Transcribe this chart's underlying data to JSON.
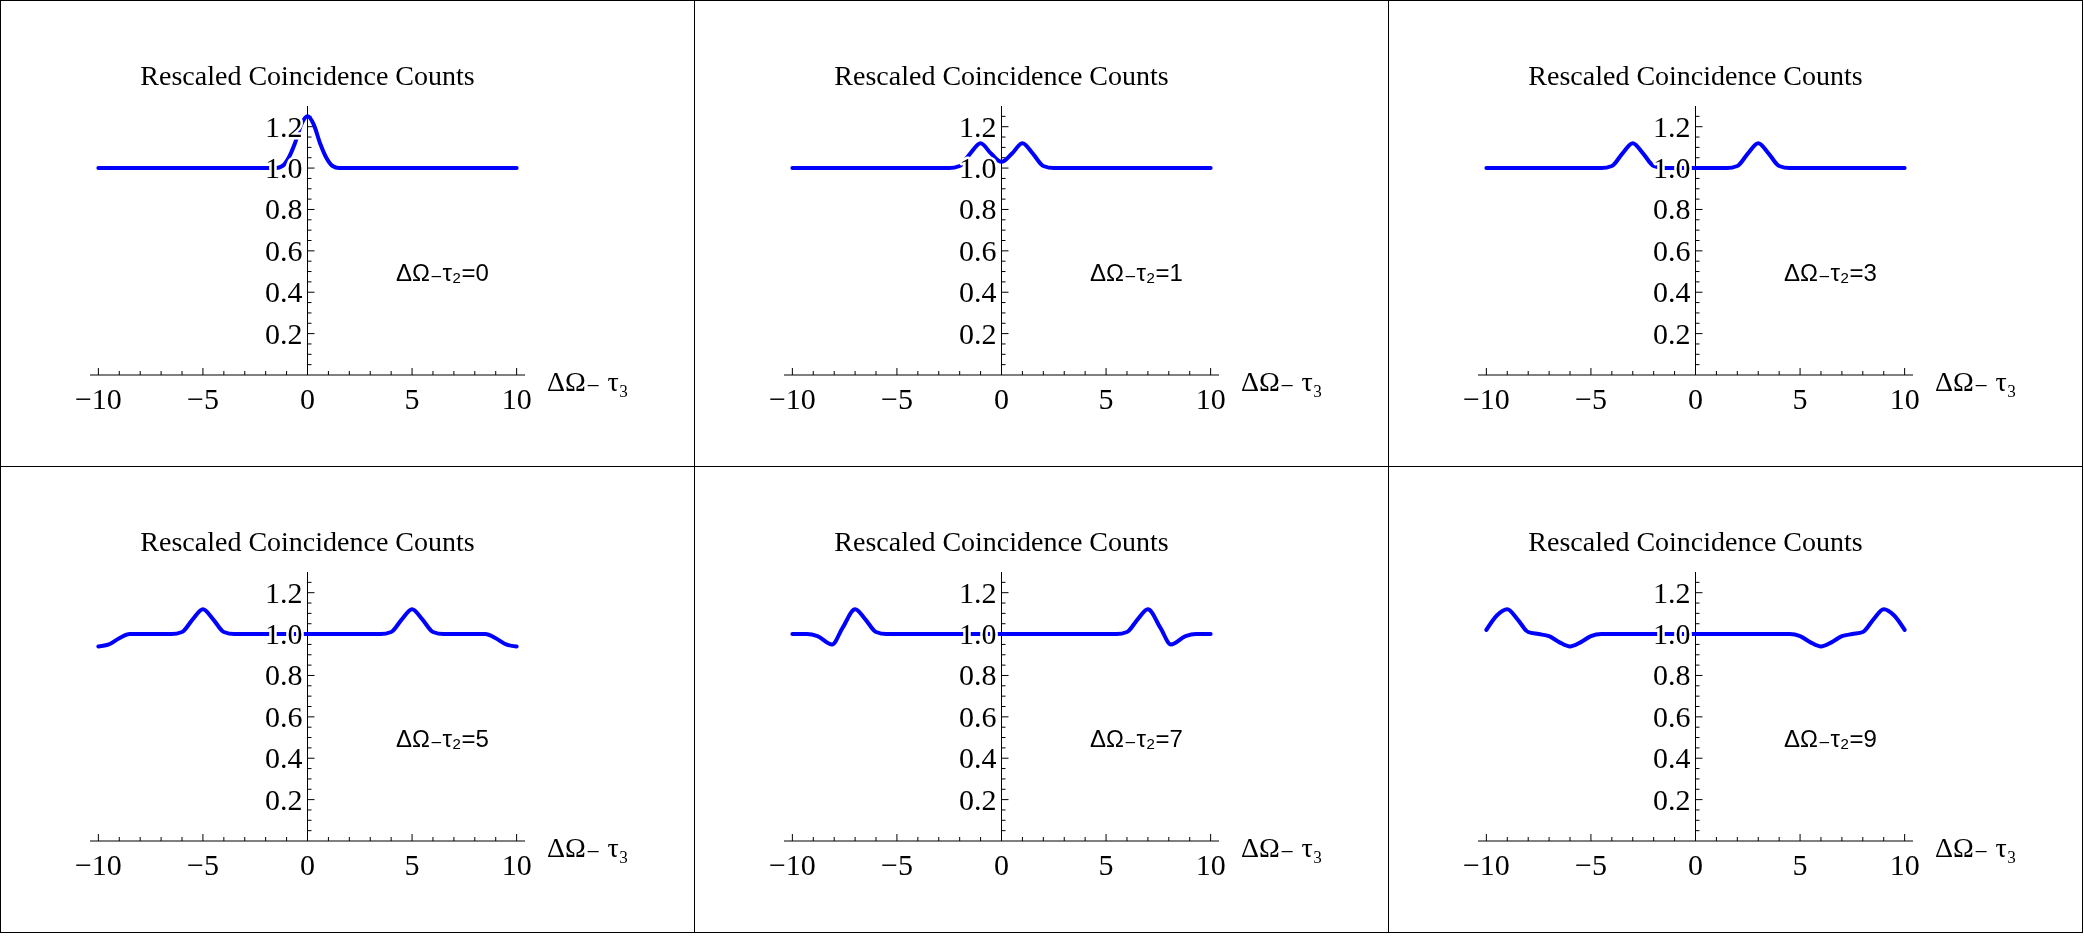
{
  "chart_data": [
    {
      "type": "line",
      "title": "Rescaled Coincidence Counts",
      "xlabel": "ΔΩ₋ τ₃",
      "annotations": [
        "ΔΩ₋τ₂=0"
      ],
      "xlim": [
        -10.4,
        10.4
      ],
      "ylim": [
        0,
        1.3
      ],
      "xticks": [
        {
          "value": -10,
          "label": "−10"
        },
        {
          "value": -9,
          "label": null
        },
        {
          "value": -8,
          "label": null
        },
        {
          "value": -7,
          "label": null
        },
        {
          "value": -6,
          "label": null
        },
        {
          "value": -5,
          "label": "−5"
        },
        {
          "value": -4,
          "label": null
        },
        {
          "value": -3,
          "label": null
        },
        {
          "value": -2,
          "label": null
        },
        {
          "value": -1,
          "label": null
        },
        {
          "value": 0,
          "label": "0"
        },
        {
          "value": 1,
          "label": null
        },
        {
          "value": 2,
          "label": null
        },
        {
          "value": 3,
          "label": null
        },
        {
          "value": 4,
          "label": null
        },
        {
          "value": 5,
          "label": "5"
        },
        {
          "value": 6,
          "label": null
        },
        {
          "value": 7,
          "label": null
        },
        {
          "value": 8,
          "label": null
        },
        {
          "value": 9,
          "label": null
        },
        {
          "value": 10,
          "label": "10"
        }
      ],
      "yticks": [
        {
          "value": 0.05,
          "label": null
        },
        {
          "value": 0.1,
          "label": null
        },
        {
          "value": 0.15,
          "label": null
        },
        {
          "value": 0.2,
          "label": "0.2"
        },
        {
          "value": 0.25,
          "label": null
        },
        {
          "value": 0.3,
          "label": null
        },
        {
          "value": 0.35,
          "label": null
        },
        {
          "value": 0.4,
          "label": "0.4"
        },
        {
          "value": 0.45,
          "label": null
        },
        {
          "value": 0.5,
          "label": null
        },
        {
          "value": 0.55,
          "label": null
        },
        {
          "value": 0.6,
          "label": "0.6"
        },
        {
          "value": 0.65,
          "label": null
        },
        {
          "value": 0.7,
          "label": null
        },
        {
          "value": 0.75,
          "label": null
        },
        {
          "value": 0.8,
          "label": "0.8"
        },
        {
          "value": 0.85,
          "label": null
        },
        {
          "value": 0.9,
          "label": null
        },
        {
          "value": 0.95,
          "label": null
        },
        {
          "value": 1,
          "label": "1.0"
        },
        {
          "value": 1.05,
          "label": null
        },
        {
          "value": 1.1,
          "label": null
        },
        {
          "value": 1.15,
          "label": null
        },
        {
          "value": 1.2,
          "label": "1.2"
        },
        {
          "value": 1.25,
          "label": null
        }
      ],
      "series": [
        {
          "color": "#0000ff",
          "x": [
            -10,
            -1.5,
            -1.2,
            -0.9,
            -0.6,
            -0.3,
            0,
            0.3,
            0.6,
            0.9,
            1.2,
            1.5,
            10
          ],
          "values": [
            1,
            1,
            1.01,
            1.05,
            1.12,
            1.21,
            1.25,
            1.21,
            1.12,
            1.05,
            1.01,
            1,
            1
          ]
        }
      ]
    },
    {
      "type": "line",
      "title": "Rescaled Coincidence Counts",
      "xlabel": "ΔΩ₋ τ₃",
      "annotations": [
        "ΔΩ₋τ₂=1"
      ],
      "xlim": [
        -10.4,
        10.4
      ],
      "ylim": [
        0,
        1.3
      ],
      "xticks": [
        {
          "value": -10,
          "label": "−10"
        },
        {
          "value": -9,
          "label": null
        },
        {
          "value": -8,
          "label": null
        },
        {
          "value": -7,
          "label": null
        },
        {
          "value": -6,
          "label": null
        },
        {
          "value": -5,
          "label": "−5"
        },
        {
          "value": -4,
          "label": null
        },
        {
          "value": -3,
          "label": null
        },
        {
          "value": -2,
          "label": null
        },
        {
          "value": -1,
          "label": null
        },
        {
          "value": 0,
          "label": "0"
        },
        {
          "value": 1,
          "label": null
        },
        {
          "value": 2,
          "label": null
        },
        {
          "value": 3,
          "label": null
        },
        {
          "value": 4,
          "label": null
        },
        {
          "value": 5,
          "label": "5"
        },
        {
          "value": 6,
          "label": null
        },
        {
          "value": 7,
          "label": null
        },
        {
          "value": 8,
          "label": null
        },
        {
          "value": 9,
          "label": null
        },
        {
          "value": 10,
          "label": "10"
        }
      ],
      "yticks": [
        {
          "value": 0.05,
          "label": null
        },
        {
          "value": 0.1,
          "label": null
        },
        {
          "value": 0.15,
          "label": null
        },
        {
          "value": 0.2,
          "label": "0.2"
        },
        {
          "value": 0.25,
          "label": null
        },
        {
          "value": 0.3,
          "label": null
        },
        {
          "value": 0.35,
          "label": null
        },
        {
          "value": 0.4,
          "label": "0.4"
        },
        {
          "value": 0.45,
          "label": null
        },
        {
          "value": 0.5,
          "label": null
        },
        {
          "value": 0.55,
          "label": null
        },
        {
          "value": 0.6,
          "label": "0.6"
        },
        {
          "value": 0.65,
          "label": null
        },
        {
          "value": 0.7,
          "label": null
        },
        {
          "value": 0.75,
          "label": null
        },
        {
          "value": 0.8,
          "label": "0.8"
        },
        {
          "value": 0.85,
          "label": null
        },
        {
          "value": 0.9,
          "label": null
        },
        {
          "value": 0.95,
          "label": null
        },
        {
          "value": 1,
          "label": "1.0"
        },
        {
          "value": 1.05,
          "label": null
        },
        {
          "value": 1.1,
          "label": null
        },
        {
          "value": 1.15,
          "label": null
        },
        {
          "value": 1.2,
          "label": "1.2"
        },
        {
          "value": 1.25,
          "label": null
        }
      ],
      "series": [
        {
          "color": "#0000ff",
          "x": [
            -10,
            -2.5,
            -2,
            -1.5,
            -1,
            -0.5,
            0,
            0.5,
            1,
            1.5,
            2,
            2.5,
            10
          ],
          "values": [
            1,
            1,
            1.01,
            1.07,
            1.12,
            1.07,
            1.03,
            1.07,
            1.12,
            1.07,
            1.01,
            1,
            1
          ]
        }
      ]
    },
    {
      "type": "line",
      "title": "Rescaled Coincidence Counts",
      "xlabel": "ΔΩ₋ τ₃",
      "annotations": [
        "ΔΩ₋τ₂=3"
      ],
      "xlim": [
        -10.4,
        10.4
      ],
      "ylim": [
        0,
        1.3
      ],
      "xticks": [
        {
          "value": -10,
          "label": "−10"
        },
        {
          "value": -9,
          "label": null
        },
        {
          "value": -8,
          "label": null
        },
        {
          "value": -7,
          "label": null
        },
        {
          "value": -6,
          "label": null
        },
        {
          "value": -5,
          "label": "−5"
        },
        {
          "value": -4,
          "label": null
        },
        {
          "value": -3,
          "label": null
        },
        {
          "value": -2,
          "label": null
        },
        {
          "value": -1,
          "label": null
        },
        {
          "value": 0,
          "label": "0"
        },
        {
          "value": 1,
          "label": null
        },
        {
          "value": 2,
          "label": null
        },
        {
          "value": 3,
          "label": null
        },
        {
          "value": 4,
          "label": null
        },
        {
          "value": 5,
          "label": "5"
        },
        {
          "value": 6,
          "label": null
        },
        {
          "value": 7,
          "label": null
        },
        {
          "value": 8,
          "label": null
        },
        {
          "value": 9,
          "label": null
        },
        {
          "value": 10,
          "label": "10"
        }
      ],
      "yticks": [
        {
          "value": 0.05,
          "label": null
        },
        {
          "value": 0.1,
          "label": null
        },
        {
          "value": 0.15,
          "label": null
        },
        {
          "value": 0.2,
          "label": "0.2"
        },
        {
          "value": 0.25,
          "label": null
        },
        {
          "value": 0.3,
          "label": null
        },
        {
          "value": 0.35,
          "label": null
        },
        {
          "value": 0.4,
          "label": "0.4"
        },
        {
          "value": 0.45,
          "label": null
        },
        {
          "value": 0.5,
          "label": null
        },
        {
          "value": 0.55,
          "label": null
        },
        {
          "value": 0.6,
          "label": "0.6"
        },
        {
          "value": 0.65,
          "label": null
        },
        {
          "value": 0.7,
          "label": null
        },
        {
          "value": 0.75,
          "label": null
        },
        {
          "value": 0.8,
          "label": "0.8"
        },
        {
          "value": 0.85,
          "label": null
        },
        {
          "value": 0.9,
          "label": null
        },
        {
          "value": 0.95,
          "label": null
        },
        {
          "value": 1,
          "label": "1.0"
        },
        {
          "value": 1.05,
          "label": null
        },
        {
          "value": 1.1,
          "label": null
        },
        {
          "value": 1.15,
          "label": null
        },
        {
          "value": 1.2,
          "label": "1.2"
        },
        {
          "value": 1.25,
          "label": null
        }
      ],
      "series": [
        {
          "color": "#0000ff",
          "x": [
            -10,
            -4.5,
            -4,
            -3.5,
            -3,
            -2.5,
            -2,
            -1.5,
            0,
            1.5,
            2,
            2.5,
            3,
            3.5,
            4,
            4.5,
            10
          ],
          "values": [
            1,
            1,
            1.01,
            1.07,
            1.12,
            1.07,
            1.01,
            1,
            1,
            1,
            1.01,
            1.07,
            1.12,
            1.07,
            1.01,
            1,
            1
          ]
        }
      ]
    },
    {
      "type": "line",
      "title": "Rescaled Coincidence Counts",
      "xlabel": "ΔΩ₋ τ₃",
      "annotations": [
        "ΔΩ₋τ₂=5"
      ],
      "xlim": [
        -10.4,
        10.4
      ],
      "ylim": [
        0,
        1.3
      ],
      "xticks": [
        {
          "value": -10,
          "label": "−10"
        },
        {
          "value": -9,
          "label": null
        },
        {
          "value": -8,
          "label": null
        },
        {
          "value": -7,
          "label": null
        },
        {
          "value": -6,
          "label": null
        },
        {
          "value": -5,
          "label": "−5"
        },
        {
          "value": -4,
          "label": null
        },
        {
          "value": -3,
          "label": null
        },
        {
          "value": -2,
          "label": null
        },
        {
          "value": -1,
          "label": null
        },
        {
          "value": 0,
          "label": "0"
        },
        {
          "value": 1,
          "label": null
        },
        {
          "value": 2,
          "label": null
        },
        {
          "value": 3,
          "label": null
        },
        {
          "value": 4,
          "label": null
        },
        {
          "value": 5,
          "label": "5"
        },
        {
          "value": 6,
          "label": null
        },
        {
          "value": 7,
          "label": null
        },
        {
          "value": 8,
          "label": null
        },
        {
          "value": 9,
          "label": null
        },
        {
          "value": 10,
          "label": "10"
        }
      ],
      "yticks": [
        {
          "value": 0.05,
          "label": null
        },
        {
          "value": 0.1,
          "label": null
        },
        {
          "value": 0.15,
          "label": null
        },
        {
          "value": 0.2,
          "label": "0.2"
        },
        {
          "value": 0.25,
          "label": null
        },
        {
          "value": 0.3,
          "label": null
        },
        {
          "value": 0.35,
          "label": null
        },
        {
          "value": 0.4,
          "label": "0.4"
        },
        {
          "value": 0.45,
          "label": null
        },
        {
          "value": 0.5,
          "label": null
        },
        {
          "value": 0.55,
          "label": null
        },
        {
          "value": 0.6,
          "label": "0.6"
        },
        {
          "value": 0.65,
          "label": null
        },
        {
          "value": 0.7,
          "label": null
        },
        {
          "value": 0.75,
          "label": null
        },
        {
          "value": 0.8,
          "label": "0.8"
        },
        {
          "value": 0.85,
          "label": null
        },
        {
          "value": 0.9,
          "label": null
        },
        {
          "value": 0.95,
          "label": null
        },
        {
          "value": 1,
          "label": "1.0"
        },
        {
          "value": 1.05,
          "label": null
        },
        {
          "value": 1.1,
          "label": null
        },
        {
          "value": 1.15,
          "label": null
        },
        {
          "value": 1.2,
          "label": "1.2"
        },
        {
          "value": 1.25,
          "label": null
        }
      ],
      "series": [
        {
          "color": "#0000ff",
          "x": [
            -10,
            -9.5,
            -9,
            -8.5,
            -6.5,
            -6,
            -5.5,
            -5,
            -4.5,
            -4,
            -3.5,
            0,
            3.5,
            4,
            4.5,
            5,
            5.5,
            6,
            6.5,
            8.5,
            9,
            9.5,
            10
          ],
          "values": [
            0.94,
            0.95,
            0.98,
            1,
            1,
            1.01,
            1.07,
            1.12,
            1.07,
            1.01,
            1,
            1,
            1,
            1.01,
            1.07,
            1.12,
            1.07,
            1.01,
            1,
            1,
            0.98,
            0.95,
            0.94
          ]
        }
      ]
    },
    {
      "type": "line",
      "title": "Rescaled Coincidence Counts",
      "xlabel": "ΔΩ₋ τ₃",
      "annotations": [
        "ΔΩ₋τ₂=7"
      ],
      "xlim": [
        -10.4,
        10.4
      ],
      "ylim": [
        0,
        1.3
      ],
      "xticks": [
        {
          "value": -10,
          "label": "−10"
        },
        {
          "value": -9,
          "label": null
        },
        {
          "value": -8,
          "label": null
        },
        {
          "value": -7,
          "label": null
        },
        {
          "value": -6,
          "label": null
        },
        {
          "value": -5,
          "label": "−5"
        },
        {
          "value": -4,
          "label": null
        },
        {
          "value": -3,
          "label": null
        },
        {
          "value": -2,
          "label": null
        },
        {
          "value": -1,
          "label": null
        },
        {
          "value": 0,
          "label": "0"
        },
        {
          "value": 1,
          "label": null
        },
        {
          "value": 2,
          "label": null
        },
        {
          "value": 3,
          "label": null
        },
        {
          "value": 4,
          "label": null
        },
        {
          "value": 5,
          "label": "5"
        },
        {
          "value": 6,
          "label": null
        },
        {
          "value": 7,
          "label": null
        },
        {
          "value": 8,
          "label": null
        },
        {
          "value": 9,
          "label": null
        },
        {
          "value": 10,
          "label": "10"
        }
      ],
      "yticks": [
        {
          "value": 0.05,
          "label": null
        },
        {
          "value": 0.1,
          "label": null
        },
        {
          "value": 0.15,
          "label": null
        },
        {
          "value": 0.2,
          "label": "0.2"
        },
        {
          "value": 0.25,
          "label": null
        },
        {
          "value": 0.3,
          "label": null
        },
        {
          "value": 0.35,
          "label": null
        },
        {
          "value": 0.4,
          "label": "0.4"
        },
        {
          "value": 0.45,
          "label": null
        },
        {
          "value": 0.5,
          "label": null
        },
        {
          "value": 0.55,
          "label": null
        },
        {
          "value": 0.6,
          "label": "0.6"
        },
        {
          "value": 0.65,
          "label": null
        },
        {
          "value": 0.7,
          "label": null
        },
        {
          "value": 0.75,
          "label": null
        },
        {
          "value": 0.8,
          "label": "0.8"
        },
        {
          "value": 0.85,
          "label": null
        },
        {
          "value": 0.9,
          "label": null
        },
        {
          "value": 0.95,
          "label": null
        },
        {
          "value": 1,
          "label": "1.0"
        },
        {
          "value": 1.05,
          "label": null
        },
        {
          "value": 1.1,
          "label": null
        },
        {
          "value": 1.15,
          "label": null
        },
        {
          "value": 1.2,
          "label": "1.2"
        },
        {
          "value": 1.25,
          "label": null
        }
      ],
      "series": [
        {
          "color": "#0000ff",
          "x": [
            -10,
            -9.3,
            -8.8,
            -8.1,
            -7.6,
            -7,
            -6.5,
            -6,
            -5.5,
            0,
            5.5,
            6,
            6.5,
            7,
            7.6,
            8.1,
            8.8,
            9.3,
            10
          ],
          "values": [
            1,
            1,
            0.99,
            0.95,
            1.03,
            1.12,
            1.07,
            1.01,
            1,
            1,
            1,
            1.01,
            1.07,
            1.12,
            1.03,
            0.95,
            0.99,
            1,
            1
          ]
        }
      ]
    },
    {
      "type": "line",
      "title": "Rescaled Coincidence Counts",
      "xlabel": "ΔΩ₋ τ₃",
      "annotations": [
        "ΔΩ₋τ₂=9"
      ],
      "xlim": [
        -10.4,
        10.4
      ],
      "ylim": [
        0,
        1.3
      ],
      "xticks": [
        {
          "value": -10,
          "label": "−10"
        },
        {
          "value": -9,
          "label": null
        },
        {
          "value": -8,
          "label": null
        },
        {
          "value": -7,
          "label": null
        },
        {
          "value": -6,
          "label": null
        },
        {
          "value": -5,
          "label": "−5"
        },
        {
          "value": -4,
          "label": null
        },
        {
          "value": -3,
          "label": null
        },
        {
          "value": -2,
          "label": null
        },
        {
          "value": -1,
          "label": null
        },
        {
          "value": 0,
          "label": "0"
        },
        {
          "value": 1,
          "label": null
        },
        {
          "value": 2,
          "label": null
        },
        {
          "value": 3,
          "label": null
        },
        {
          "value": 4,
          "label": null
        },
        {
          "value": 5,
          "label": "5"
        },
        {
          "value": 6,
          "label": null
        },
        {
          "value": 7,
          "label": null
        },
        {
          "value": 8,
          "label": null
        },
        {
          "value": 9,
          "label": null
        },
        {
          "value": 10,
          "label": "10"
        }
      ],
      "yticks": [
        {
          "value": 0.05,
          "label": null
        },
        {
          "value": 0.1,
          "label": null
        },
        {
          "value": 0.15,
          "label": null
        },
        {
          "value": 0.2,
          "label": "0.2"
        },
        {
          "value": 0.25,
          "label": null
        },
        {
          "value": 0.3,
          "label": null
        },
        {
          "value": 0.35,
          "label": null
        },
        {
          "value": 0.4,
          "label": "0.4"
        },
        {
          "value": 0.45,
          "label": null
        },
        {
          "value": 0.5,
          "label": null
        },
        {
          "value": 0.55,
          "label": null
        },
        {
          "value": 0.6,
          "label": "0.6"
        },
        {
          "value": 0.65,
          "label": null
        },
        {
          "value": 0.7,
          "label": null
        },
        {
          "value": 0.75,
          "label": null
        },
        {
          "value": 0.8,
          "label": "0.8"
        },
        {
          "value": 0.85,
          "label": null
        },
        {
          "value": 0.9,
          "label": null
        },
        {
          "value": 0.95,
          "label": null
        },
        {
          "value": 1,
          "label": "1.0"
        },
        {
          "value": 1.05,
          "label": null
        },
        {
          "value": 1.1,
          "label": null
        },
        {
          "value": 1.15,
          "label": null
        },
        {
          "value": 1.2,
          "label": "1.2"
        },
        {
          "value": 1.25,
          "label": null
        }
      ],
      "series": [
        {
          "color": "#0000ff",
          "x": [
            -10,
            -9.5,
            -9,
            -8.5,
            -8,
            -7.5,
            -7,
            -6.5,
            -6,
            -5.5,
            -5,
            -4.5,
            0,
            4.5,
            5,
            5.5,
            6,
            6.5,
            7,
            7.5,
            8,
            8.5,
            9,
            9.5,
            10
          ],
          "values": [
            1.02,
            1.09,
            1.12,
            1.07,
            1.01,
            1,
            0.99,
            0.96,
            0.94,
            0.96,
            0.99,
            1,
            1,
            1,
            0.99,
            0.96,
            0.94,
            0.96,
            0.99,
            1,
            1.01,
            1.07,
            1.12,
            1.09,
            1.02
          ]
        }
      ]
    }
  ]
}
